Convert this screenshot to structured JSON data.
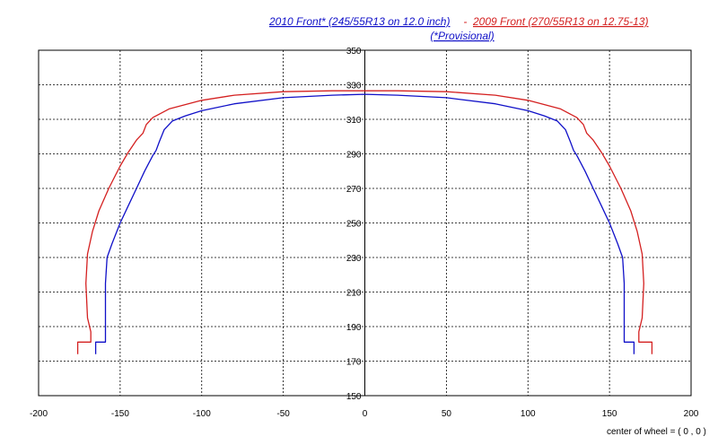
{
  "chart_data": {
    "type": "line",
    "title": {
      "blue_part": "2010 Front* (245/55R13 on 12.0 inch)",
      "separator": " - ",
      "red_part": "2009 Front (270/55R13 on 12.75-13)",
      "subtitle": "(*Provisional)"
    },
    "xlim": [
      -200,
      200
    ],
    "ylim": [
      150,
      350
    ],
    "x_ticks": [
      -200,
      -150,
      -100,
      -50,
      0,
      50,
      100,
      150,
      200
    ],
    "y_ticks": [
      150,
      170,
      190,
      210,
      230,
      250,
      270,
      290,
      310,
      330,
      350
    ],
    "x_tick_labels": [
      "-200",
      "-150",
      "-100",
      "-50",
      "0",
      "50",
      "100",
      "150",
      "200"
    ],
    "y_tick_labels": [
      "150",
      "170",
      "190",
      "210",
      "230",
      "250",
      "270",
      "290",
      "310",
      "330",
      "350"
    ],
    "grid": true,
    "annotation": "center of wheel = ( 0 , 0 )",
    "series": [
      {
        "name": "2010 Front* (245/55R13 on 12.0 inch)",
        "color": "#1010c8",
        "points": [
          [
            -165,
            174
          ],
          [
            -165,
            181
          ],
          [
            -159,
            181
          ],
          [
            -159,
            186
          ],
          [
            -159,
            215
          ],
          [
            -158,
            230
          ],
          [
            -155,
            238
          ],
          [
            -150,
            250
          ],
          [
            -145,
            260
          ],
          [
            -140,
            270
          ],
          [
            -135,
            280
          ],
          [
            -130,
            289
          ],
          [
            -128,
            292
          ],
          [
            -126,
            297
          ],
          [
            -123,
            304
          ],
          [
            -118,
            309
          ],
          [
            -110,
            312
          ],
          [
            -100,
            315
          ],
          [
            -80,
            319
          ],
          [
            -50,
            322.5
          ],
          [
            -20,
            324
          ],
          [
            0,
            324.5
          ],
          [
            20,
            324
          ],
          [
            50,
            322.5
          ],
          [
            80,
            319
          ],
          [
            100,
            315
          ],
          [
            110,
            312
          ],
          [
            118,
            309
          ],
          [
            123,
            304
          ],
          [
            126,
            297
          ],
          [
            128,
            292
          ],
          [
            130,
            289
          ],
          [
            135,
            280
          ],
          [
            140,
            270
          ],
          [
            145,
            260
          ],
          [
            150,
            250
          ],
          [
            155,
            238
          ],
          [
            158,
            230
          ],
          [
            159,
            215
          ],
          [
            159,
            186
          ],
          [
            159,
            181
          ],
          [
            165,
            181
          ],
          [
            165,
            174
          ]
        ]
      },
      {
        "name": "2009 Front (270/55R13 on 12.75-13)",
        "color": "#d42020",
        "points": [
          [
            -176,
            174
          ],
          [
            -176,
            181
          ],
          [
            -168,
            181
          ],
          [
            -168,
            187
          ],
          [
            -170,
            195
          ],
          [
            -171,
            215
          ],
          [
            -170,
            232
          ],
          [
            -167,
            245
          ],
          [
            -163,
            257
          ],
          [
            -157,
            270
          ],
          [
            -150,
            283
          ],
          [
            -145,
            291
          ],
          [
            -140,
            298
          ],
          [
            -136,
            302
          ],
          [
            -134,
            307
          ],
          [
            -130,
            311
          ],
          [
            -120,
            316
          ],
          [
            -100,
            321
          ],
          [
            -80,
            324
          ],
          [
            -50,
            326
          ],
          [
            -20,
            326.5
          ],
          [
            0,
            326.5
          ],
          [
            20,
            326.5
          ],
          [
            50,
            326
          ],
          [
            80,
            324
          ],
          [
            100,
            321
          ],
          [
            120,
            316
          ],
          [
            130,
            311
          ],
          [
            134,
            307
          ],
          [
            136,
            302
          ],
          [
            140,
            298
          ],
          [
            145,
            291
          ],
          [
            150,
            283
          ],
          [
            157,
            270
          ],
          [
            163,
            257
          ],
          [
            167,
            245
          ],
          [
            170,
            232
          ],
          [
            171,
            215
          ],
          [
            170,
            195
          ],
          [
            168,
            187
          ],
          [
            168,
            181
          ],
          [
            176,
            181
          ],
          [
            176,
            174
          ]
        ]
      }
    ]
  }
}
